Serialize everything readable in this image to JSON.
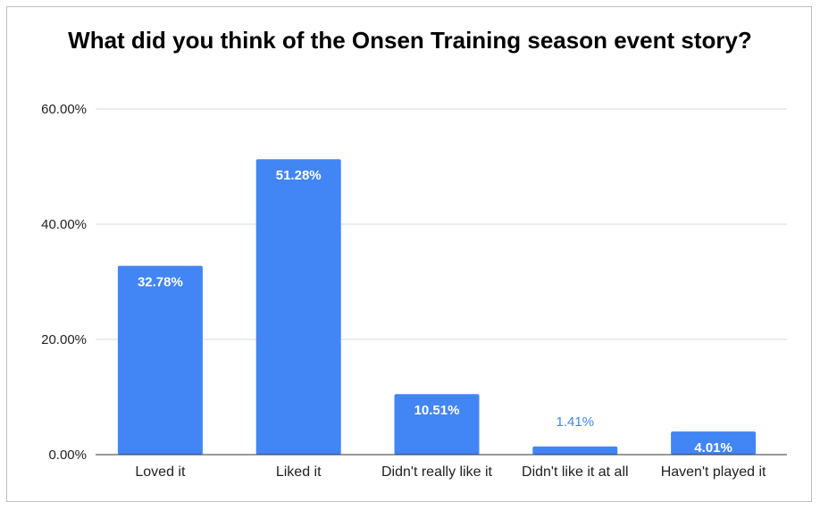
{
  "chart_data": {
    "type": "bar",
    "title": "What did you think of the Onsen Training season event story?",
    "categories": [
      "Loved it",
      "Liked it",
      "Didn't really like it",
      "Didn't like it at all",
      "Haven't played it"
    ],
    "values": [
      32.78,
      51.28,
      10.51,
      1.41,
      4.01
    ],
    "data_labels": [
      "32.78%",
      "51.28%",
      "10.51%",
      "1.41%",
      "4.01%"
    ],
    "y_ticks": [
      0,
      20,
      40,
      60
    ],
    "y_tick_labels": [
      "0.00%",
      "20.00%",
      "40.00%",
      "60.00%"
    ],
    "ylim": [
      0,
      60
    ],
    "xlabel": "",
    "ylabel": "",
    "grid": true,
    "legend": "none",
    "colors": {
      "bar": "#4285f4",
      "label_inside": "#ffffff",
      "label_outside": "#4285f4",
      "gridline": "#d9d9d9",
      "axis": "#333333",
      "text": "#222222"
    }
  }
}
